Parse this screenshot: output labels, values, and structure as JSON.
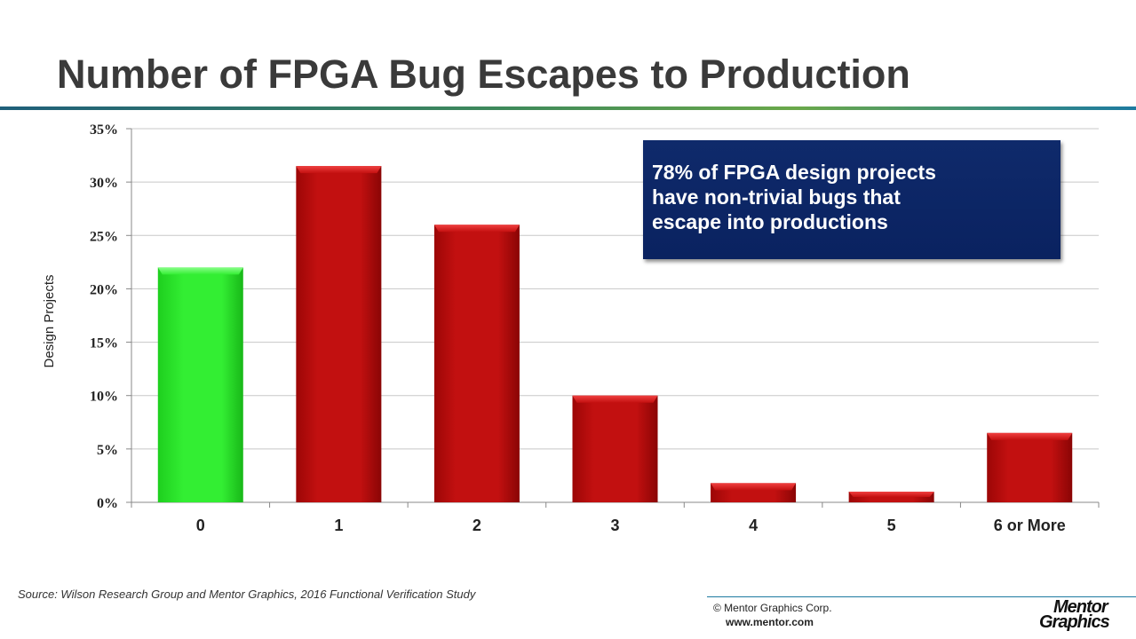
{
  "slide": {
    "title": "Number of FPGA Bug Escapes to Production",
    "callout_lines": [
      "78% of FPGA design projects",
      "have non-trivial bugs that",
      "escape into productions"
    ],
    "source": "Source:  Wilson Research Group and Mentor Graphics, 2016 Functional Verification Study",
    "copyright": "© Mentor Graphics Corp.",
    "website": "www.mentor.com",
    "logo_lines": [
      "Mentor",
      "Graphics"
    ]
  },
  "colors": {
    "highlight_bar": "#22dd22",
    "other_bars": "#b80a0a",
    "callout_bg": "#0f2a6b",
    "title_text": "#3a3a3a"
  },
  "chart_data": {
    "type": "bar",
    "title": "",
    "xlabel": "",
    "ylabel": "Design Projects",
    "categories": [
      "0",
      "1",
      "2",
      "3",
      "4",
      "5",
      "6 or More"
    ],
    "values": [
      22,
      31.5,
      26,
      10,
      1.8,
      1,
      6.5
    ],
    "highlight_index": 0,
    "ylim": [
      0,
      35
    ],
    "y_ticks": [
      "0%",
      "5%",
      "10%",
      "15%",
      "20%",
      "25%",
      "30%",
      "35%"
    ],
    "y_tick_values": [
      0,
      5,
      10,
      15,
      20,
      25,
      30,
      35
    ],
    "grid": true,
    "legend": "none"
  }
}
